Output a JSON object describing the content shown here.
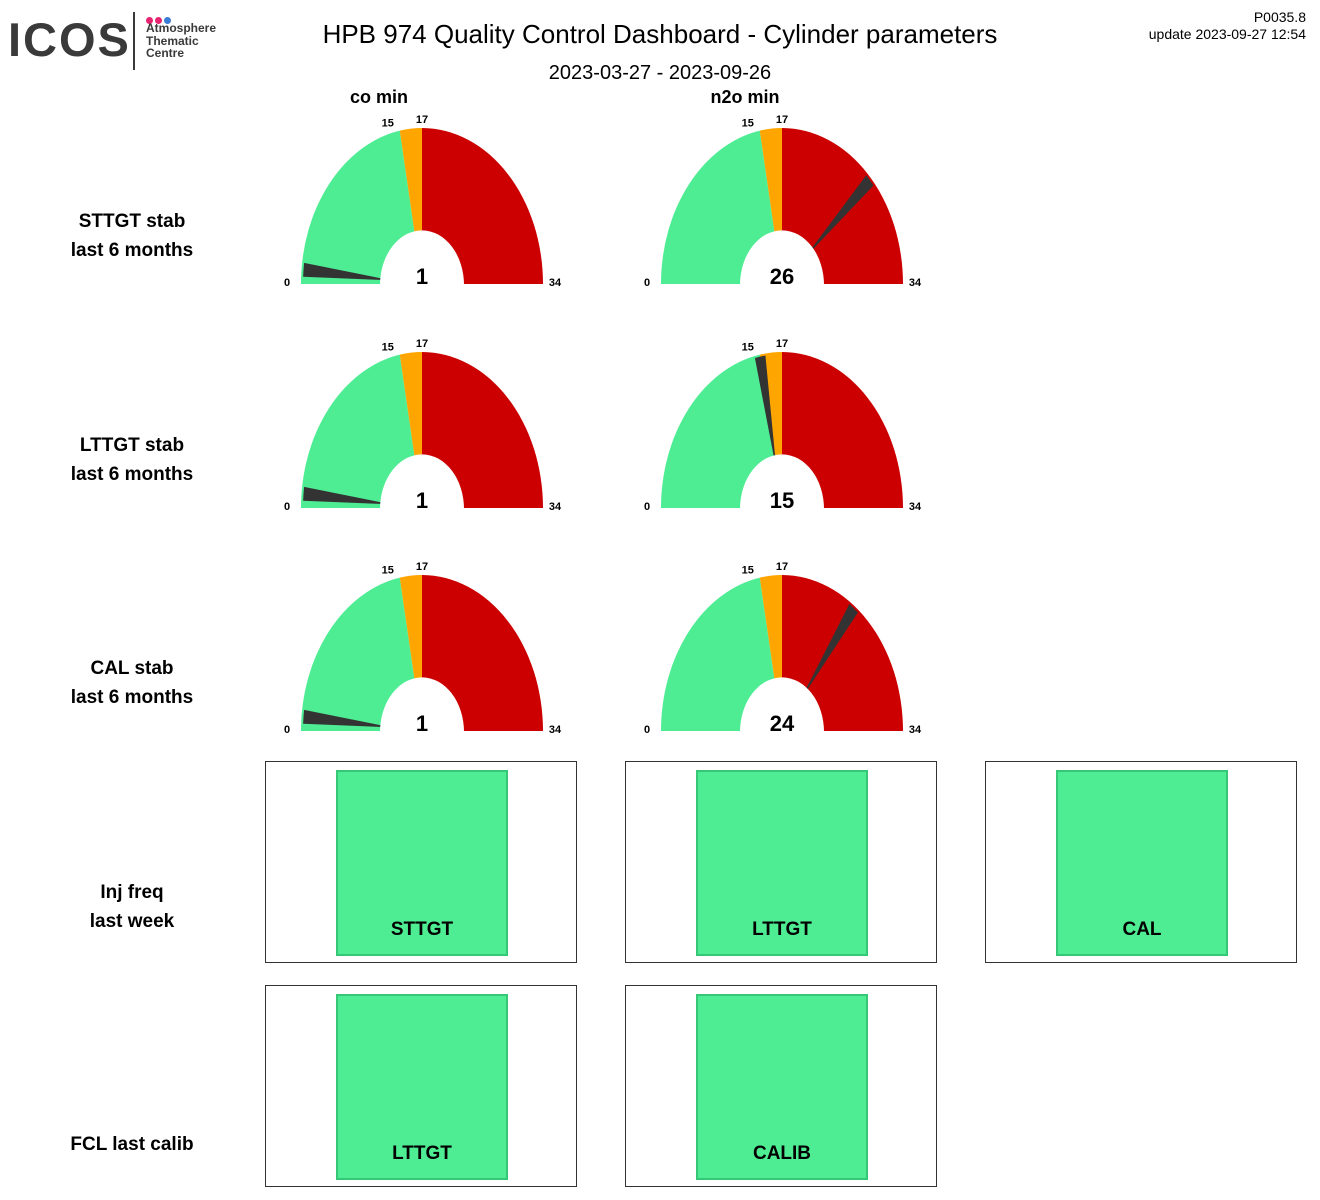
{
  "header": {
    "logo": "ICOS",
    "logo_sub": [
      "Atmosphere",
      "Thematic",
      "Centre"
    ],
    "logo_dot_colors": [
      "#e8236f",
      "#e8236f",
      "#3a7bd5"
    ],
    "title": "HPB 974 Quality Control Dashboard - Cylinder parameters",
    "date_range": "2023-03-27 - 2023-09-26",
    "version": "P0035.8",
    "update": "update  2023-09-27 12:54"
  },
  "columns": [
    "co min",
    "n2o min"
  ],
  "colors": {
    "green": "#4eed93",
    "orange": "#ffa500",
    "red": "#cc0000",
    "needle": "#333333"
  },
  "gauge_scale": {
    "min": 0,
    "max": 34,
    "green_max": 15,
    "orange_max": 17,
    "labels": {
      "min": "0",
      "green_max": "15",
      "orange_max": "17",
      "max": "34"
    }
  },
  "rows": [
    {
      "label": [
        "STTGT stab",
        "last 6 months"
      ],
      "values": [
        1,
        26
      ]
    },
    {
      "label": [
        "LTTGT stab",
        "last 6 months"
      ],
      "values": [
        1,
        15
      ]
    },
    {
      "label": [
        "CAL stab",
        "last 6 months"
      ],
      "values": [
        1,
        24
      ]
    }
  ],
  "inj_freq": {
    "label": [
      "Inj freq",
      "last week"
    ],
    "items": [
      "STTGT",
      "LTTGT",
      "CAL"
    ],
    "status": "ok"
  },
  "fcl": {
    "label": [
      "FCL last calib"
    ],
    "items": [
      "LTTGT",
      "CALIB"
    ],
    "status": "ok"
  }
}
